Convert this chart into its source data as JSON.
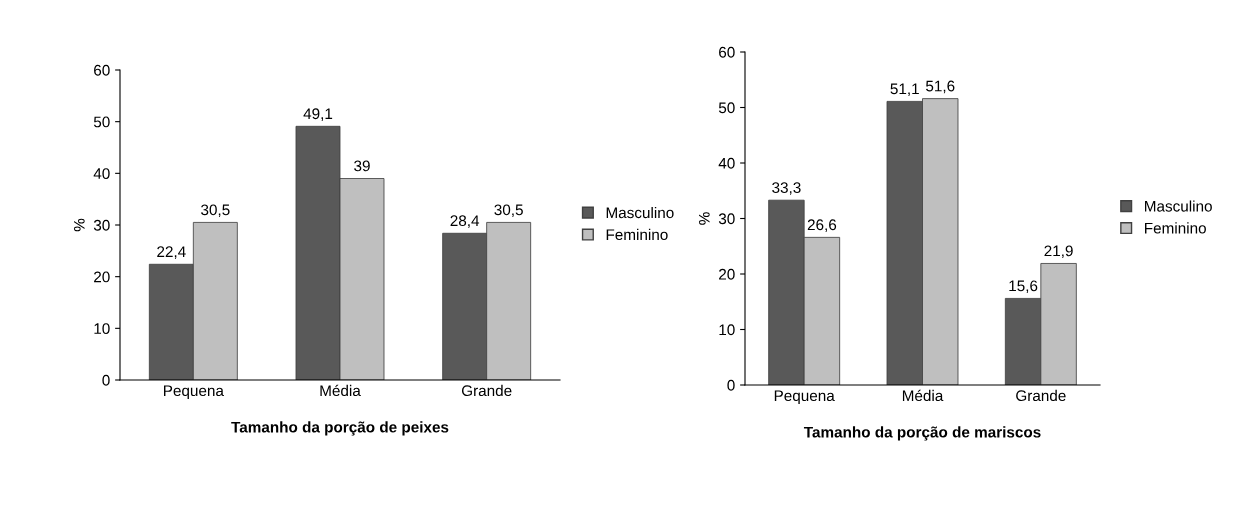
{
  "chart_data": [
    {
      "type": "bar",
      "xlabel": "Tamanho da porção de peixes",
      "ylabel": "%",
      "categories": [
        "Pequena",
        "Média",
        "Grande"
      ],
      "ylim": [
        0,
        60
      ],
      "yticks": [
        0,
        10,
        20,
        30,
        40,
        50,
        60
      ],
      "grid": false,
      "legend": "right",
      "series": [
        {
          "name": "Masculino",
          "color": "#595959",
          "values": [
            22.4,
            49.1,
            28.4
          ],
          "value_labels": [
            "22,4",
            "49,1",
            "28,4"
          ]
        },
        {
          "name": "Feminino",
          "color": "#bfbfbf",
          "values": [
            30.5,
            39,
            30.5
          ],
          "value_labels": [
            "30,5",
            "39",
            "30,5"
          ]
        }
      ]
    },
    {
      "type": "bar",
      "xlabel": "Tamanho da porção de mariscos",
      "ylabel": "%",
      "categories": [
        "Pequena",
        "Média",
        "Grande"
      ],
      "ylim": [
        0,
        60
      ],
      "yticks": [
        0,
        10,
        20,
        30,
        40,
        50,
        60
      ],
      "grid": false,
      "legend": "right",
      "series": [
        {
          "name": "Masculino",
          "color": "#595959",
          "values": [
            33.3,
            51.1,
            15.6
          ],
          "value_labels": [
            "33,3",
            "51,1",
            "15,6"
          ]
        },
        {
          "name": "Feminino",
          "color": "#bfbfbf",
          "values": [
            26.6,
            51.6,
            21.9
          ],
          "value_labels": [
            "26,6",
            "51,6",
            "21,9"
          ]
        }
      ]
    }
  ]
}
